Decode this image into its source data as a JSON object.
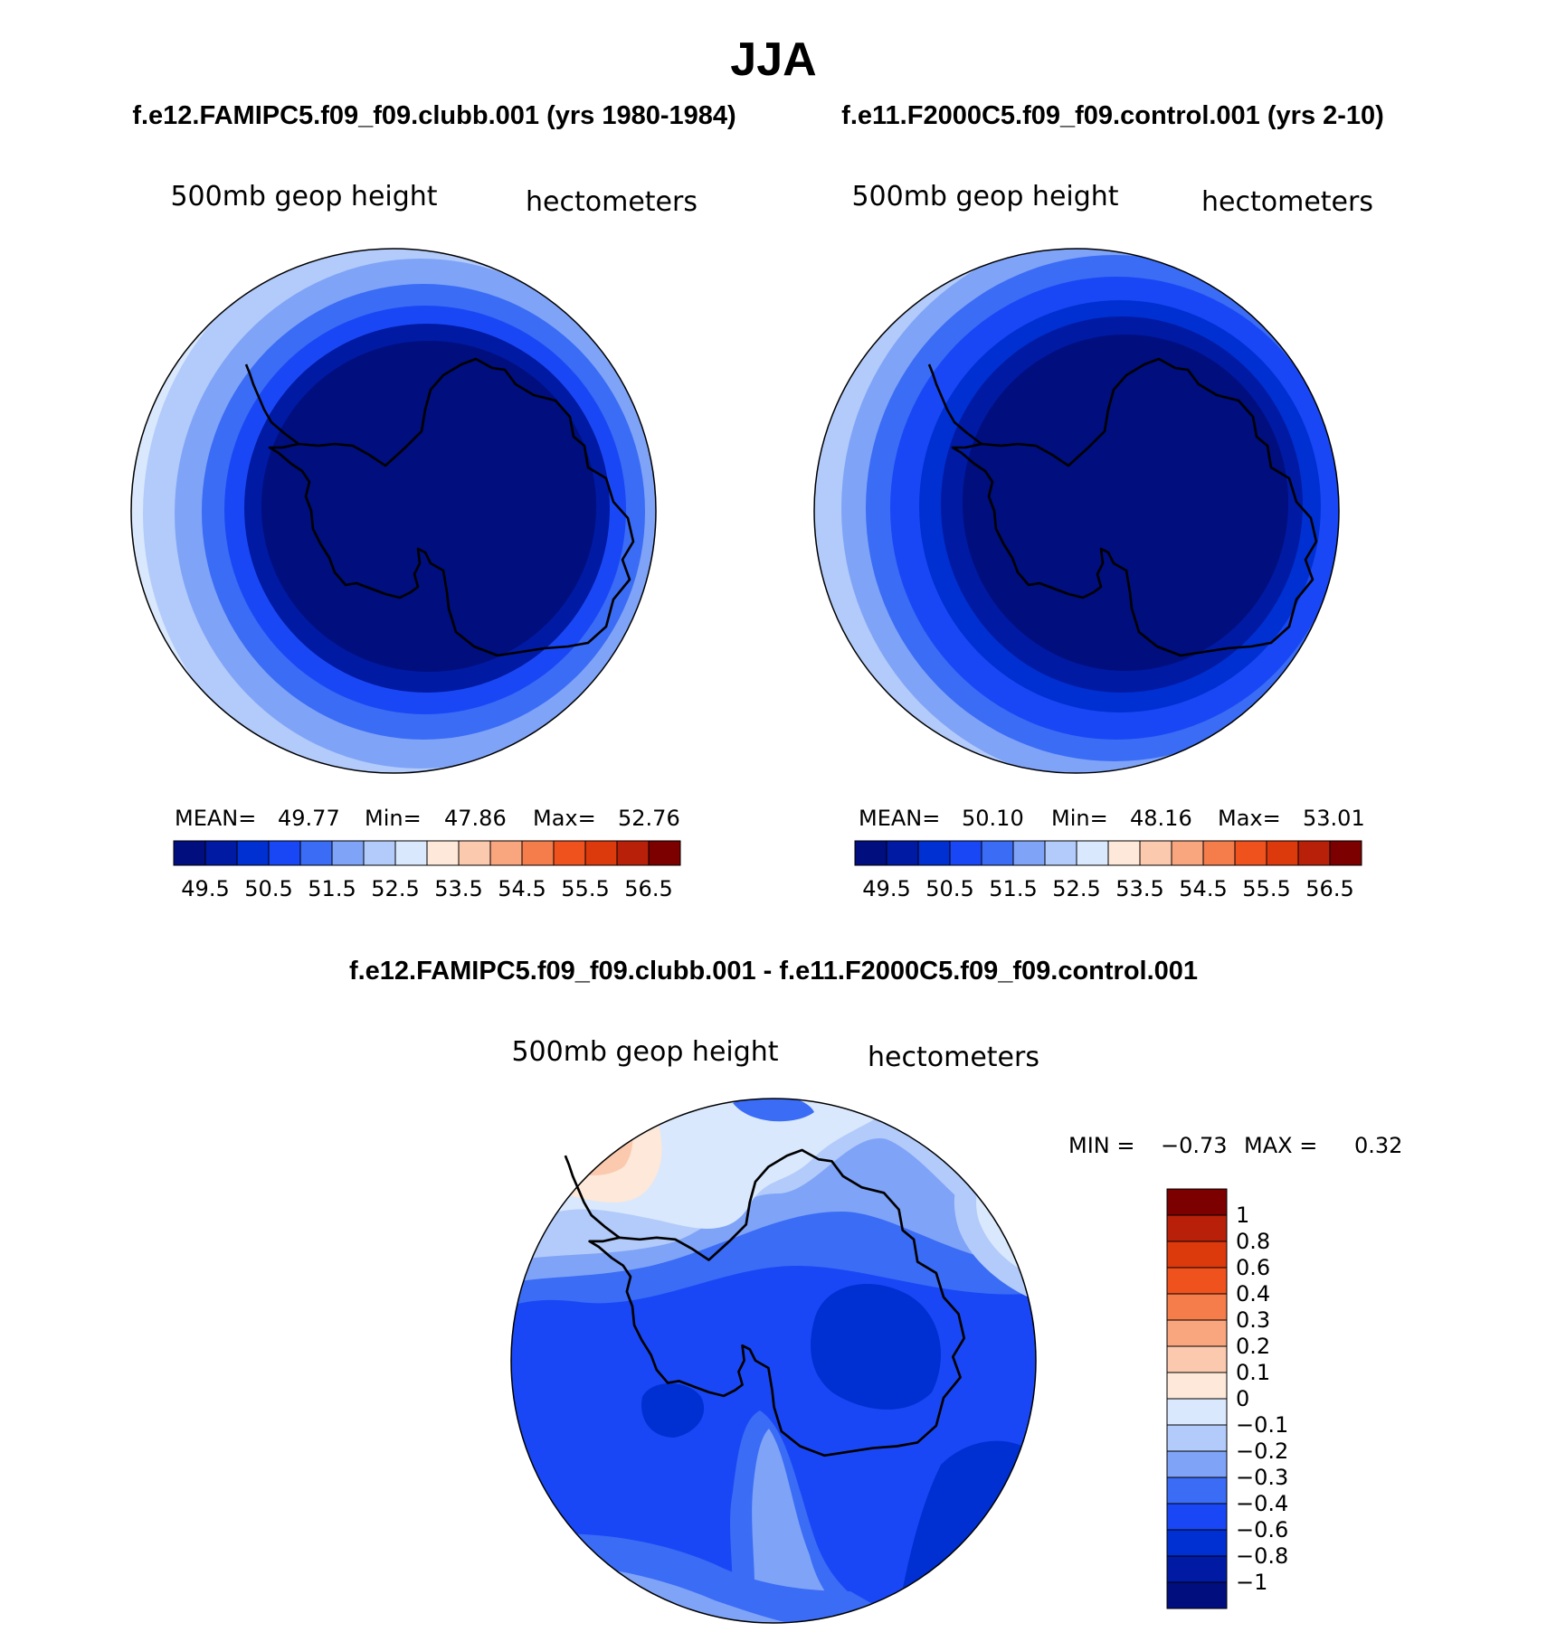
{
  "figure": {
    "season": "JJA",
    "left_title": "f.e12.FAMIPC5.f09_f09.clubb.001 (yrs 1980-1984)",
    "right_title": "f.e11.F2000C5.f09_f09.control.001 (yrs 2-10)",
    "diff_title": "f.e12.FAMIPC5.f09_f09.clubb.001 - f.e11.F2000C5.f09_f09.control.001"
  },
  "panels": {
    "left": {
      "variable": "500mb geop height",
      "units": "hectometers",
      "mean_label": "MEAN=",
      "mean": "49.77",
      "min_label": "Min=",
      "min": "47.86",
      "max_label": "Max=",
      "max": "52.76"
    },
    "right": {
      "variable": "500mb geop height",
      "units": "hectometers",
      "mean_label": "MEAN=",
      "mean": "50.10",
      "min_label": "Min=",
      "min": "48.16",
      "max_label": "Max=",
      "max": "53.01"
    },
    "diff": {
      "variable": "500mb geop height",
      "units": "hectometers",
      "min_label": "MIN =",
      "min": "−0.73",
      "max_label": "MAX =",
      "max": "0.32"
    }
  },
  "colorbars": {
    "main": {
      "colors": [
        "#000e7e",
        "#001aa3",
        "#0030d1",
        "#1a47f5",
        "#3a6cf5",
        "#7fa3f7",
        "#b3cbfa",
        "#d9e8fc",
        "#fde8d9",
        "#fbc9ae",
        "#f9a57e",
        "#f57c4b",
        "#f0521e",
        "#dc3a0c",
        "#b8200a",
        "#7d0000"
      ],
      "tick_labels": [
        "49.5",
        "50.5",
        "51.5",
        "52.5",
        "53.5",
        "54.5",
        "55.5",
        "56.5"
      ]
    },
    "diff": {
      "colors": [
        "#7d0000",
        "#b8200a",
        "#dc3a0c",
        "#f0521e",
        "#f57c4b",
        "#f9a57e",
        "#fbc9ae",
        "#fde8d9",
        "#d9e8fc",
        "#b3cbfa",
        "#7fa3f7",
        "#3a6cf5",
        "#1a47f5",
        "#0030d1",
        "#001aa3",
        "#000e7e"
      ],
      "tick_labels": [
        "1",
        "0.8",
        "0.6",
        "0.4",
        "0.3",
        "0.2",
        "0.1",
        "0",
        "−0.1",
        "−0.2",
        "−0.3",
        "−0.4",
        "−0.6",
        "−0.8",
        "−1"
      ]
    }
  }
}
